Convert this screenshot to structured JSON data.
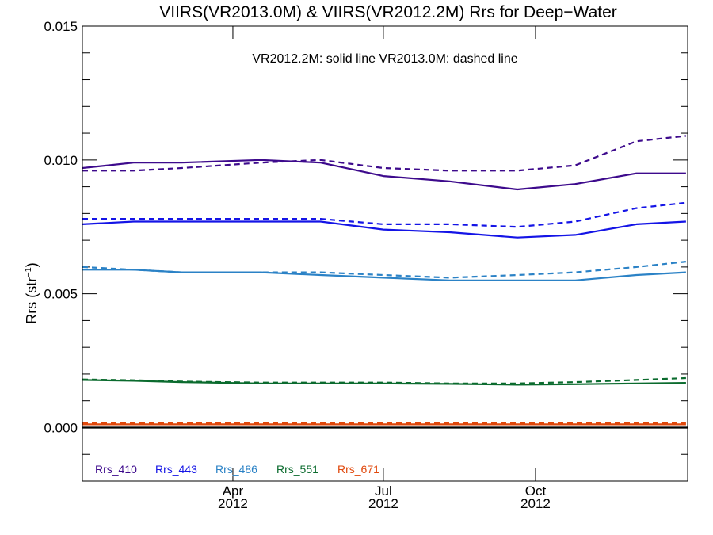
{
  "chart_data": {
    "type": "line",
    "title": "VIIRS(VR2013.0M) & VIIRS(VR2012.2M)  Rrs for Deep−Water",
    "ylabel": "Rrs (str",
    "ylabel_unit_exp": "−1",
    "ylabel_close": ")",
    "annotation": "VR2012.2M: solid line   VR2013.0M: dashed line",
    "xlim": [
      "2012-01-01",
      "2012-12-31"
    ],
    "ylim": [
      -0.002,
      0.015
    ],
    "yticks": [
      0.0,
      0.005,
      0.01,
      0.015
    ],
    "ytick_labels": [
      "0.000",
      "0.005",
      "0.010",
      "0.015"
    ],
    "xticks": [
      {
        "date": "2012-04-01",
        "month": "Apr",
        "year": "2012"
      },
      {
        "date": "2012-07-01",
        "month": "Jul",
        "year": "2012"
      },
      {
        "date": "2012-10-01",
        "month": "Oct",
        "year": "2012"
      }
    ],
    "zero_line": 0.0,
    "grid": false,
    "legend_position": "bottom-left",
    "dates": [
      "2012-01-01",
      "2012-02-01",
      "2012-03-01",
      "2012-04-18",
      "2012-05-24",
      "2012-07-01",
      "2012-08-10",
      "2012-09-20",
      "2012-10-25",
      "2012-12-01",
      "2012-12-31"
    ],
    "series": [
      {
        "name": "Rrs_410",
        "color": "#3d0a8c",
        "solid": [
          0.0097,
          0.0099,
          0.0099,
          0.01,
          0.0099,
          0.0094,
          0.0092,
          0.0089,
          0.0091,
          0.0095,
          0.0095
        ],
        "dashed": [
          0.0096,
          0.0096,
          0.0097,
          0.0099,
          0.01,
          0.0097,
          0.0096,
          0.0096,
          0.0098,
          0.0107,
          0.0109
        ]
      },
      {
        "name": "Rrs_443",
        "color": "#1414e6",
        "solid": [
          0.0076,
          0.0077,
          0.0077,
          0.0077,
          0.0077,
          0.0074,
          0.0073,
          0.0071,
          0.0072,
          0.0076,
          0.0077
        ],
        "dashed": [
          0.0078,
          0.0078,
          0.0078,
          0.0078,
          0.0078,
          0.0076,
          0.0076,
          0.0075,
          0.0077,
          0.0082,
          0.0084
        ]
      },
      {
        "name": "Rrs_486",
        "color": "#2b82c6",
        "solid": [
          0.0059,
          0.0059,
          0.0058,
          0.0058,
          0.0057,
          0.0056,
          0.0055,
          0.0055,
          0.0055,
          0.0057,
          0.0058
        ],
        "dashed": [
          0.006,
          0.0059,
          0.0058,
          0.0058,
          0.0058,
          0.0057,
          0.0056,
          0.0057,
          0.0058,
          0.006,
          0.0062
        ]
      },
      {
        "name": "Rrs_551",
        "color": "#0b6b2e",
        "solid": [
          0.00178,
          0.00175,
          0.0017,
          0.00165,
          0.00165,
          0.00165,
          0.00163,
          0.0016,
          0.00162,
          0.00165,
          0.00167
        ],
        "dashed": [
          0.0018,
          0.00177,
          0.00172,
          0.00168,
          0.00168,
          0.00168,
          0.00165,
          0.00165,
          0.0017,
          0.00178,
          0.00185
        ]
      },
      {
        "name": "Rrs_671",
        "color": "#e0480c",
        "solid": [
          0.00012,
          0.00012,
          0.00012,
          0.00012,
          0.00012,
          0.00012,
          0.00012,
          0.00012,
          0.00012,
          0.00012,
          0.00012
        ],
        "dashed": [
          0.00018,
          0.00018,
          0.00018,
          0.00018,
          0.00018,
          0.00018,
          0.00018,
          0.00018,
          0.00018,
          0.00018,
          0.00018
        ]
      }
    ]
  }
}
